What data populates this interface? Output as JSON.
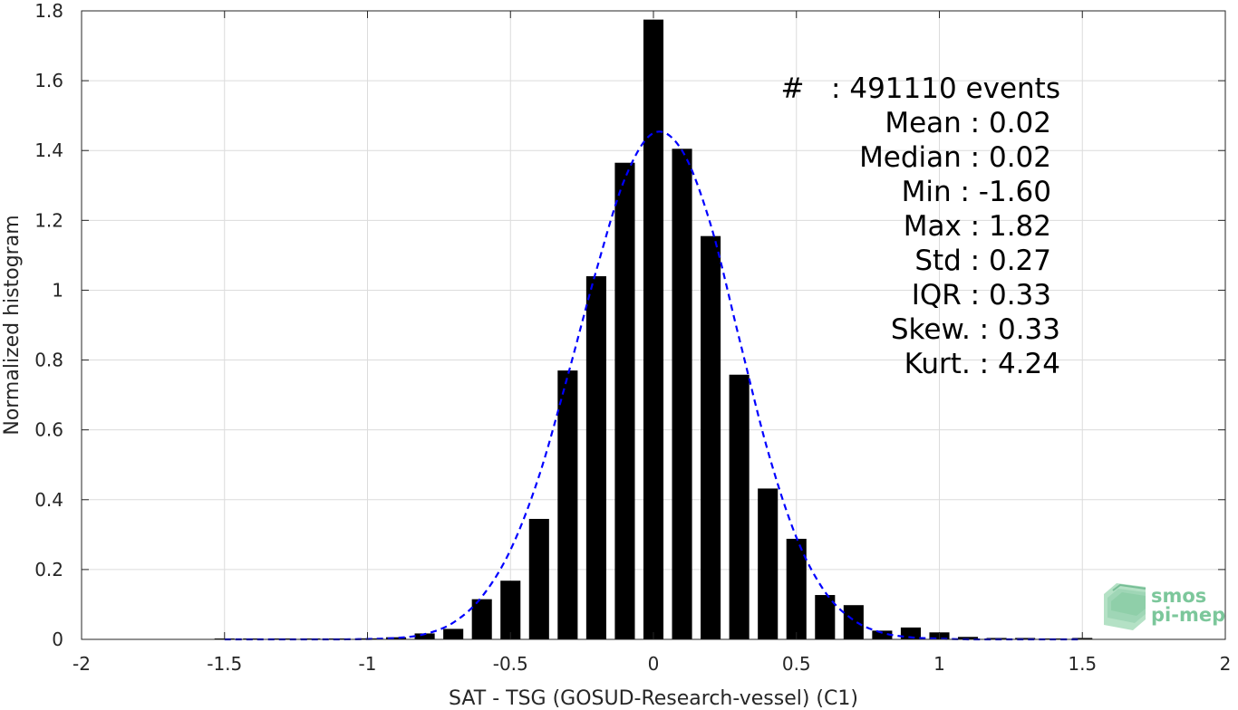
{
  "chart_data": {
    "type": "bar",
    "xlabel": "SAT - TSG (GOSUD-Research-vessel) (C1)",
    "ylabel": "Normalized histogram",
    "xlim": [
      -2,
      2
    ],
    "ylim": [
      0,
      1.8
    ],
    "x_ticks": [
      "-2",
      "-1.5",
      "-1",
      "-0.5",
      "0",
      "0.5",
      "1",
      "1.5",
      "2"
    ],
    "y_ticks": [
      "0",
      "0.2",
      "0.4",
      "0.6",
      "0.8",
      "1",
      "1.2",
      "1.4",
      "1.6",
      "1.8"
    ],
    "grid": true,
    "bar_color": "#000000",
    "bars": {
      "x": [
        -1.5,
        -1.4,
        -1.3,
        -1.2,
        -1.1,
        -1.0,
        -0.9,
        -0.8,
        -0.7,
        -0.6,
        -0.5,
        -0.4,
        -0.3,
        -0.2,
        -0.1,
        0.0,
        0.1,
        0.2,
        0.3,
        0.4,
        0.5,
        0.6,
        0.7,
        0.8,
        0.9,
        1.0,
        1.1,
        1.2,
        1.3,
        1.4,
        1.5
      ],
      "values": [
        0.002,
        0.001,
        0.001,
        0.001,
        0.002,
        0.003,
        0.006,
        0.017,
        0.03,
        0.115,
        0.168,
        0.345,
        0.77,
        1.04,
        1.365,
        1.775,
        1.405,
        1.155,
        0.758,
        0.432,
        0.288,
        0.127,
        0.098,
        0.025,
        0.034,
        0.02,
        0.007,
        0.004,
        0.004,
        0.002,
        0.004
      ]
    },
    "fit": {
      "name": "normal fit",
      "color": "#0000ff",
      "style": "dashed",
      "x": [
        -1.5,
        -1.4,
        -1.3,
        -1.2,
        -1.1,
        -1.0,
        -0.9,
        -0.8,
        -0.7,
        -0.6,
        -0.5,
        -0.4,
        -0.3,
        -0.2,
        -0.1,
        0.0,
        0.1,
        0.2,
        0.3,
        0.4,
        0.5,
        0.6,
        0.7,
        0.8,
        0.9,
        1.0,
        1.1,
        1.2,
        1.3,
        1.4,
        1.5
      ],
      "values": [
        0.0,
        0.0,
        0.0,
        0.0,
        0.0,
        0.001,
        0.004,
        0.015,
        0.048,
        0.122,
        0.256,
        0.468,
        0.754,
        1.056,
        1.319,
        1.45,
        1.4,
        1.188,
        0.862,
        0.54,
        0.292,
        0.136,
        0.055,
        0.019,
        0.006,
        0.002,
        0.0,
        0.0,
        0.0,
        0.0,
        0.0
      ]
    },
    "annotations": {
      "events": "#   : 491110 events",
      "mean": "Mean : 0.02",
      "median": "Median : 0.02",
      "min": "Min : -1.60",
      "max": "Max : 1.82",
      "std": "Std : 0.27",
      "iqr": "IQR : 0.33",
      "skew": "Skew. : 0.33",
      "kurt": "Kurt. : 4.24"
    }
  },
  "logo": {
    "line1": "smos",
    "line2": "pi-mep",
    "color": "#7cc79b"
  }
}
